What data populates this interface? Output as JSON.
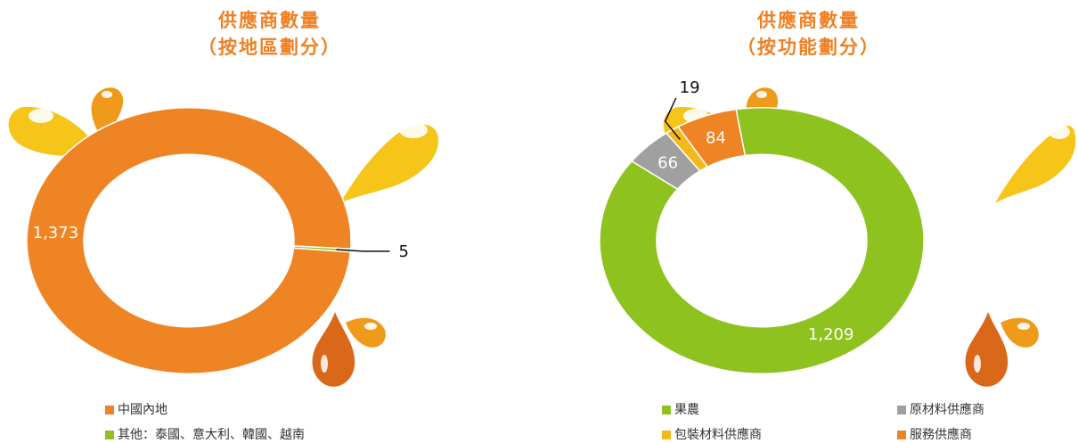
{
  "charts": [
    {
      "title_line1": "供應商數量",
      "title_line2": "（按地區劃分）"
    },
    {
      "title_line1": "供應商數量",
      "title_line2": "（按功能劃分）"
    }
  ],
  "colors": {
    "title": "#f07f22",
    "orange": "#ef8424",
    "green": "#8dc21f",
    "gray": "#a0a0a0",
    "yellow": "#f4b81a",
    "drop_light": "#f5c51a",
    "drop_dark": "#d9681a"
  },
  "chart_data": [
    {
      "type": "pie",
      "variant": "donut",
      "title": "供應商數量（按地區劃分）",
      "slices": [
        {
          "label": "中國內地",
          "value": 1373,
          "value_label": "1,373",
          "color": "#ef8424",
          "label_style": "inside"
        },
        {
          "label": "其他：泰國、意大利、韓國、越南",
          "value": 5,
          "value_label": "5",
          "color": "#8dc21f",
          "label_style": "callout"
        }
      ],
      "legend_position": "bottom"
    },
    {
      "type": "pie",
      "variant": "donut",
      "title": "供應商數量（按功能劃分）",
      "slices": [
        {
          "label": "果農",
          "value": 1209,
          "value_label": "1,209",
          "color": "#8dc21f",
          "label_style": "inside"
        },
        {
          "label": "原材料供應商",
          "value": 66,
          "value_label": "66",
          "color": "#a0a0a0",
          "label_style": "inside"
        },
        {
          "label": "包裝材料供應商",
          "value": 19,
          "value_label": "19",
          "color": "#f4b81a",
          "label_style": "callout"
        },
        {
          "label": "服務供應商",
          "value": 84,
          "value_label": "84",
          "color": "#ef8424",
          "label_style": "inside"
        }
      ],
      "legend_position": "bottom"
    }
  ]
}
